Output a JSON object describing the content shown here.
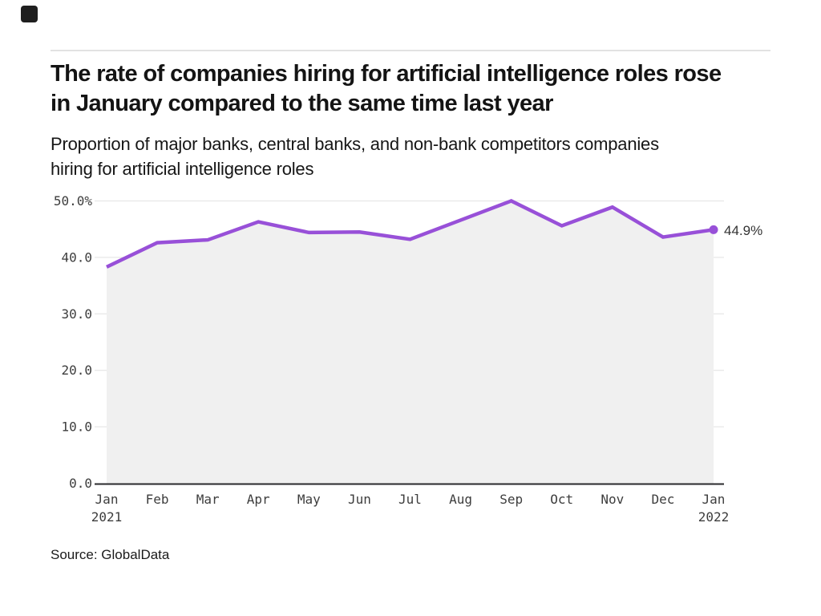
{
  "header": {
    "title": "The rate of companies hiring for artificial intelligence roles rose in January compared to the same time last year",
    "subtitle": "Proportion of major banks, central banks, and non-bank competitors companies hiring for artificial intelligence roles"
  },
  "chart_data": {
    "type": "area",
    "title": "Proportion of major banks, central banks, and non-bank competitors companies hiring for artificial intelligence roles",
    "x_ticks": [
      {
        "label": "Jan",
        "sublabel": "2021"
      },
      {
        "label": "Feb"
      },
      {
        "label": "Mar"
      },
      {
        "label": "Apr"
      },
      {
        "label": "May"
      },
      {
        "label": "Jun"
      },
      {
        "label": "Jul"
      },
      {
        "label": "Aug"
      },
      {
        "label": "Sep"
      },
      {
        "label": "Oct"
      },
      {
        "label": "Nov"
      },
      {
        "label": "Dec"
      },
      {
        "label": "Jan",
        "sublabel": "2022"
      }
    ],
    "values": [
      38.3,
      42.6,
      43.1,
      46.3,
      44.4,
      44.5,
      43.2,
      46.6,
      50.0,
      45.6,
      48.9,
      43.6,
      44.9
    ],
    "end_label": "44.9%",
    "ylim": [
      0,
      50
    ],
    "y_ticks": [
      {
        "value": 50,
        "label": "50.0%"
      },
      {
        "value": 40,
        "label": "40.0"
      },
      {
        "value": 30,
        "label": "30.0"
      },
      {
        "value": 20,
        "label": "20.0"
      },
      {
        "value": 10,
        "label": "10.0"
      },
      {
        "value": 0,
        "label": "0.0"
      }
    ],
    "grid": true,
    "legend": "none",
    "colors": {
      "line": "#9850d8",
      "area": "#f0f0f0",
      "grid": "#e9e9e9",
      "axis": "#29292c",
      "tick_text": "#3d3d3d",
      "end_label_text": "#333333"
    }
  },
  "footer": {
    "source": "Source: GlobalData"
  }
}
